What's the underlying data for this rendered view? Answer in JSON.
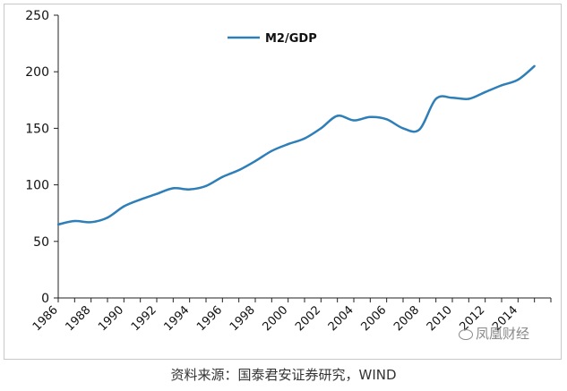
{
  "source_note": "资料来源：国泰君安证券研究，WIND",
  "watermark": "凤凰财经",
  "colors": {
    "line": "#2E7FB8",
    "axis": "#222222",
    "frame": "#c8c8c8"
  },
  "chart_data": {
    "type": "line",
    "legend_position": "top-left",
    "grid": false,
    "ylim": [
      0,
      250
    ],
    "yticks": [
      0,
      50,
      100,
      150,
      200,
      250
    ],
    "xlim": [
      1986,
      2016
    ],
    "xticks": [
      1986,
      1988,
      1990,
      1992,
      1994,
      1996,
      1998,
      2000,
      2002,
      2004,
      2006,
      2008,
      2010,
      2012,
      2014
    ],
    "series": [
      {
        "name": "M2/GDP",
        "x": [
          1986,
          1987,
          1988,
          1989,
          1990,
          1991,
          1992,
          1993,
          1994,
          1995,
          1996,
          1997,
          1998,
          1999,
          2000,
          2001,
          2002,
          2003,
          2004,
          2005,
          2006,
          2007,
          2008,
          2009,
          2010,
          2011,
          2012,
          2013,
          2014,
          2015
        ],
        "values": [
          65,
          68,
          67,
          71,
          81,
          87,
          92,
          97,
          96,
          99,
          107,
          113,
          121,
          130,
          136,
          141,
          150,
          161,
          157,
          160,
          158,
          150,
          149,
          176,
          177,
          176,
          182,
          188,
          193,
          205
        ]
      }
    ]
  }
}
